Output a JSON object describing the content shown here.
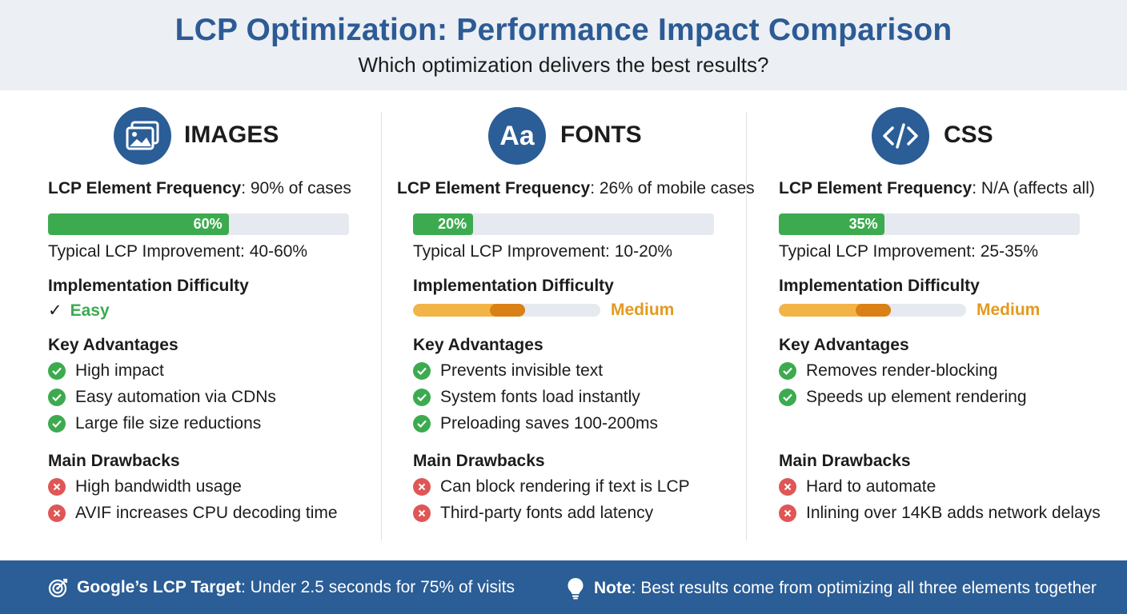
{
  "header": {
    "title": "LCP Optimization: Performance Impact Comparison",
    "subtitle": "Which optimization delivers the best results?"
  },
  "columns": [
    {
      "title": "IMAGES",
      "icon": "image-icon",
      "freq_label": "LCP Element Frequency",
      "freq_value": ": 90% of cases",
      "bar_value": 60,
      "bar_label": "60%",
      "improvement": "Typical LCP Improvement: 40-60%",
      "difficulty_heading": "Implementation Difficulty",
      "difficulty": "Easy",
      "difficulty_level": 0,
      "advantages_heading": "Key Advantages",
      "advantages": [
        "High impact",
        "Easy automation via CDNs",
        "Large file size reductions"
      ],
      "drawbacks_heading": "Main Drawbacks",
      "drawbacks": [
        "High bandwidth usage",
        "AVIF increases CPU decoding time"
      ]
    },
    {
      "title": "FONTS",
      "icon": "font-icon",
      "icon_text": "Aa",
      "freq_label": "LCP Element Frequency",
      "freq_value": ": 26% of mobile cases",
      "bar_value": 20,
      "bar_label": "20%",
      "improvement": "Typical LCP Improvement: 10-20%",
      "difficulty_heading": "Implementation Difficulty",
      "difficulty": "Medium",
      "difficulty_level": 0.6,
      "advantages_heading": "Key Advantages",
      "advantages": [
        "Prevents invisible text",
        "System fonts load instantly",
        "Preloading saves 100-200ms"
      ],
      "drawbacks_heading": "Main Drawbacks",
      "drawbacks": [
        "Can block rendering if text is LCP",
        "Third-party fonts add latency"
      ]
    },
    {
      "title": "CSS",
      "icon": "code-icon",
      "freq_label": "LCP Element Frequency",
      "freq_value": ": N/A (affects all)",
      "bar_value": 35,
      "bar_label": "35%",
      "improvement": "Typical LCP Improvement: 25-35%",
      "difficulty_heading": "Implementation Difficulty",
      "difficulty": "Medium",
      "difficulty_level": 0.6,
      "advantages_heading": "Key Advantages",
      "advantages": [
        "Removes render-blocking",
        "Speeds up element rendering"
      ],
      "drawbacks_heading": "Main Drawbacks",
      "drawbacks": [
        "Hard to automate",
        "Inlining over 14KB adds network delays"
      ]
    }
  ],
  "footer": {
    "target_label": "Google’s LCP Target",
    "target_text": ": Under 2.5 seconds for 75% of visits",
    "note_label": "Note",
    "note_text": ": Best results come from optimizing all three elements together"
  },
  "colors": {
    "primary": "#2b5d96",
    "success": "#3cab4f",
    "warning": "#e39a1f",
    "danger": "#e05656"
  }
}
